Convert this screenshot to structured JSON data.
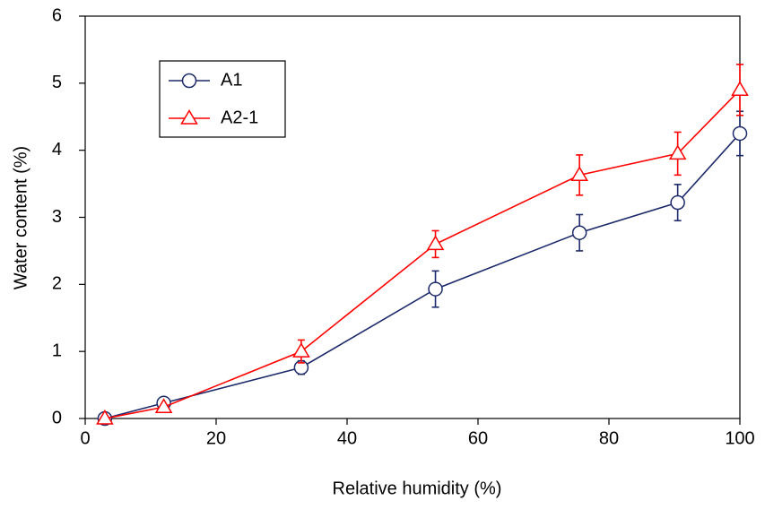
{
  "chart_data": {
    "type": "line",
    "x_label": "Relative humidity (%)",
    "y_label": "Water content (%)",
    "xlim": [
      0,
      100
    ],
    "xticks": [
      0,
      20,
      40,
      60,
      80,
      100
    ],
    "ylim": [
      0,
      6
    ],
    "yticks": [
      0,
      1,
      2,
      3,
      4,
      5,
      6
    ],
    "legend_position": "upper left",
    "series": [
      {
        "name": "A1",
        "color": "#1c2a6b",
        "marker": "circle",
        "x": [
          3,
          12,
          33,
          53.5,
          75.5,
          90.5,
          100
        ],
        "values": [
          0,
          0.23,
          0.76,
          1.93,
          2.77,
          3.22,
          4.25
        ],
        "errors": [
          0,
          0.02,
          0.1,
          0.27,
          0.27,
          0.27,
          0.33
        ]
      },
      {
        "name": "A2-1",
        "color": "#ff0000",
        "marker": "triangle",
        "x": [
          3,
          12,
          33,
          53.5,
          75.5,
          90.5,
          100
        ],
        "values": [
          0,
          0.17,
          1.0,
          2.6,
          3.63,
          3.95,
          4.9
        ],
        "errors": [
          0,
          0,
          0.17,
          0.2,
          0.3,
          0.32,
          0.38
        ]
      }
    ]
  }
}
